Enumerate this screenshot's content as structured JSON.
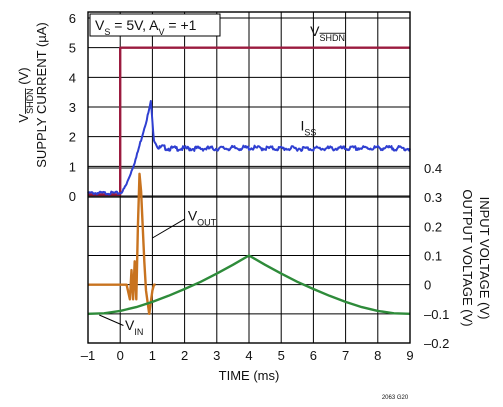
{
  "chart_data": {
    "type": "line",
    "annotation_box": "V_S = 5V, A_V = +1",
    "x_axis": {
      "label": "TIME (ms)",
      "range": [
        -1,
        9
      ],
      "ticks": [
        -1,
        0,
        1,
        2,
        3,
        4,
        5,
        6,
        7,
        8,
        9
      ]
    },
    "left_axis": {
      "label_line1": "V_SHDN (V)",
      "label_line2": "SUPPLY CURRENT (µA)",
      "range": [
        0,
        6
      ],
      "ticks": [
        0,
        1,
        2,
        3,
        4,
        5,
        6
      ]
    },
    "right_axis": {
      "label_line1": "INPUT VOLTAGE (V)",
      "label_line2": "OUTPUT VOLTAGE (V)",
      "range": [
        -0.2,
        0.4
      ],
      "ticks": [
        -0.2,
        -0.1,
        0,
        0.1,
        0.2,
        0.3,
        0.4
      ]
    },
    "grid": true,
    "colors": {
      "vshdn": "#9b1b3f",
      "iss": "#2f3fd1",
      "vout": "#c8731f",
      "vin": "#2e8b3a",
      "grid": "#000000"
    },
    "series": [
      {
        "name": "V_SHDN",
        "axis": "left",
        "x": [
          -1,
          0,
          0,
          9
        ],
        "y": [
          0.05,
          0.05,
          5.0,
          5.0
        ]
      },
      {
        "name": "I_SS",
        "axis": "left",
        "x": [
          -1,
          0,
          0.1,
          0.2,
          0.3,
          0.4,
          0.5,
          0.6,
          0.7,
          0.8,
          0.9,
          0.95,
          1.0,
          1.05,
          1.1,
          1.2,
          1.3,
          1.5,
          2,
          3,
          4,
          5,
          6,
          7,
          8,
          9
        ],
        "y": [
          0.1,
          0.1,
          0.2,
          0.4,
          0.7,
          1.0,
          1.3,
          1.7,
          2.1,
          2.5,
          2.9,
          3.2,
          2.5,
          1.9,
          1.8,
          1.6,
          1.65,
          1.6,
          1.6,
          1.6,
          1.62,
          1.6,
          1.6,
          1.6,
          1.62,
          1.6
        ]
      },
      {
        "name": "V_OUT",
        "axis": "right",
        "x": [
          -1,
          0.2,
          0.3,
          0.35,
          0.4,
          0.45,
          0.5,
          0.55,
          0.6,
          0.65,
          0.7,
          0.75,
          0.8,
          0.85,
          0.9,
          0.95,
          1.0,
          1.05,
          1.1
        ],
        "y": [
          0,
          0,
          -0.05,
          0.05,
          -0.05,
          0.08,
          -0.05,
          0.2,
          0.38,
          0.32,
          0.2,
          0.08,
          -0.02,
          -0.06,
          -0.1,
          -0.06,
          -0.02,
          0.0,
          0.0
        ]
      },
      {
        "name": "V_IN",
        "axis": "right",
        "x": [
          -1,
          -0.5,
          0,
          0.5,
          1,
          1.5,
          2,
          2.5,
          3,
          3.5,
          4,
          4.5,
          5,
          5.5,
          6,
          6.5,
          7,
          7.5,
          8,
          8.5,
          9
        ],
        "y": [
          -0.1,
          -0.098,
          -0.09,
          -0.077,
          -0.059,
          -0.038,
          -0.015,
          0.01,
          0.038,
          0.068,
          0.1,
          0.068,
          0.038,
          0.01,
          -0.015,
          -0.038,
          -0.059,
          -0.077,
          -0.09,
          -0.098,
          -0.1
        ]
      }
    ],
    "labels": {
      "vshdn": "V_SHDN",
      "iss": "I_SS",
      "vout": "V_OUT",
      "vin": "V_IN"
    },
    "figure_id": "2063 G20"
  }
}
